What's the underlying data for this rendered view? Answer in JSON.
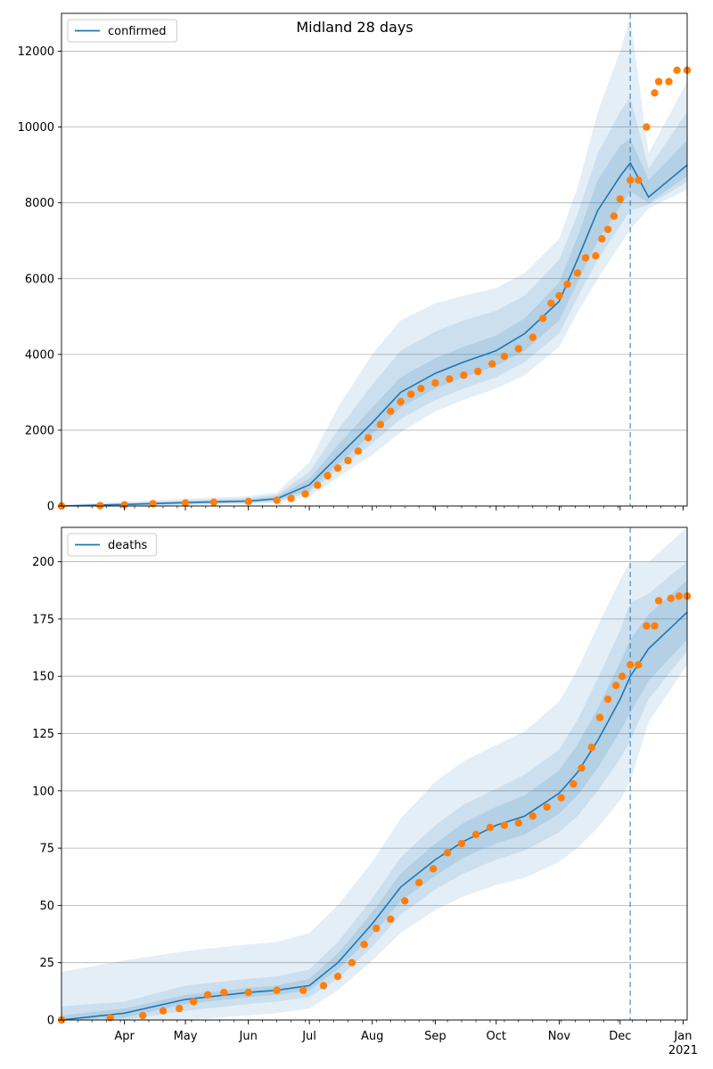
{
  "chart_data": {
    "title": "Midland 28 days",
    "type": "line",
    "x_axis": {
      "range": [
        "2020-03-01",
        "2021-01-03"
      ],
      "month_labels": [
        {
          "date": "2020-04-01",
          "label": "Apr"
        },
        {
          "date": "2020-05-01",
          "label": "May"
        },
        {
          "date": "2020-06-01",
          "label": "Jun"
        },
        {
          "date": "2020-07-01",
          "label": "Jul"
        },
        {
          "date": "2020-08-01",
          "label": "Aug"
        },
        {
          "date": "2020-09-01",
          "label": "Sep"
        },
        {
          "date": "2020-10-01",
          "label": "Oct"
        },
        {
          "date": "2020-11-01",
          "label": "Nov"
        },
        {
          "date": "2020-12-01",
          "label": "Dec"
        },
        {
          "date": "2021-01-01",
          "label": "Jan"
        }
      ],
      "year_label": "2021",
      "minor_ticks": "weekly (Mondays)"
    },
    "forecast_line_date": "2020-12-06",
    "line_color": "#1f77b4",
    "band_color": "#1f77b4",
    "dot_color": "#ff7f0e",
    "panels": [
      {
        "legend": "confirmed",
        "legend_position": "top-left",
        "grid": "horizontal",
        "ylim": [
          0,
          13000
        ],
        "yticks": [
          0,
          2000,
          4000,
          6000,
          8000,
          10000,
          12000
        ],
        "model": {
          "dates": [
            "2020-03-01",
            "2020-04-01",
            "2020-05-01",
            "2020-06-01",
            "2020-06-15",
            "2020-07-01",
            "2020-07-15",
            "2020-08-01",
            "2020-08-15",
            "2020-09-01",
            "2020-09-15",
            "2020-10-01",
            "2020-10-15",
            "2020-11-01",
            "2020-11-10",
            "2020-11-20",
            "2020-12-01",
            "2020-12-06",
            "2020-12-15",
            "2021-01-03"
          ],
          "median": [
            0,
            40,
            90,
            130,
            190,
            560,
            1300,
            2200,
            3000,
            3500,
            3800,
            4100,
            4550,
            5400,
            6500,
            7800,
            8700,
            9050,
            8150,
            9000
          ],
          "band_inner": [
            [
              0,
              0
            ],
            [
              20,
              60
            ],
            [
              60,
              120
            ],
            [
              100,
              170
            ],
            [
              150,
              250
            ],
            [
              420,
              720
            ],
            [
              1100,
              1600
            ],
            [
              1900,
              2600
            ],
            [
              2600,
              3400
            ],
            [
              3100,
              3900
            ],
            [
              3400,
              4200
            ],
            [
              3700,
              4500
            ],
            [
              4100,
              4950
            ],
            [
              4900,
              5900
            ],
            [
              5900,
              7100
            ],
            [
              7000,
              8600
            ],
            [
              7900,
              9500
            ],
            [
              8300,
              9700
            ],
            [
              8000,
              8600
            ],
            [
              8700,
              9650
            ]
          ],
          "band_mid": [
            [
              0,
              10
            ],
            [
              10,
              80
            ],
            [
              40,
              150
            ],
            [
              80,
              210
            ],
            [
              120,
              300
            ],
            [
              350,
              900
            ],
            [
              950,
              2000
            ],
            [
              1650,
              3200
            ],
            [
              2300,
              4100
            ],
            [
              2800,
              4600
            ],
            [
              3100,
              4900
            ],
            [
              3400,
              5150
            ],
            [
              3800,
              5550
            ],
            [
              4550,
              6500
            ],
            [
              5500,
              7700
            ],
            [
              6500,
              9300
            ],
            [
              7400,
              10400
            ],
            [
              7800,
              10800
            ],
            [
              7950,
              8900
            ],
            [
              8550,
              10400
            ]
          ],
          "band_outer": [
            [
              0,
              40
            ],
            [
              0,
              110
            ],
            [
              20,
              190
            ],
            [
              50,
              260
            ],
            [
              90,
              360
            ],
            [
              250,
              1150
            ],
            [
              750,
              2600
            ],
            [
              1350,
              4000
            ],
            [
              1950,
              4900
            ],
            [
              2500,
              5350
            ],
            [
              2800,
              5550
            ],
            [
              3100,
              5750
            ],
            [
              3450,
              6150
            ],
            [
              4200,
              7050
            ],
            [
              5100,
              8400
            ],
            [
              6000,
              10400
            ],
            [
              6900,
              12000
            ],
            [
              7300,
              12900
            ],
            [
              7850,
              9300
            ],
            [
              8350,
              11200
            ]
          ]
        },
        "observed": [
          {
            "date": "2020-03-01",
            "value": 0
          },
          {
            "date": "2020-03-20",
            "value": 10
          },
          {
            "date": "2020-04-01",
            "value": 30
          },
          {
            "date": "2020-04-15",
            "value": 60
          },
          {
            "date": "2020-05-01",
            "value": 80
          },
          {
            "date": "2020-05-15",
            "value": 100
          },
          {
            "date": "2020-06-01",
            "value": 120
          },
          {
            "date": "2020-06-15",
            "value": 150
          },
          {
            "date": "2020-06-22",
            "value": 200
          },
          {
            "date": "2020-06-29",
            "value": 320
          },
          {
            "date": "2020-07-05",
            "value": 550
          },
          {
            "date": "2020-07-10",
            "value": 800
          },
          {
            "date": "2020-07-15",
            "value": 1000
          },
          {
            "date": "2020-07-20",
            "value": 1200
          },
          {
            "date": "2020-07-25",
            "value": 1450
          },
          {
            "date": "2020-07-30",
            "value": 1800
          },
          {
            "date": "2020-08-05",
            "value": 2150
          },
          {
            "date": "2020-08-10",
            "value": 2500
          },
          {
            "date": "2020-08-15",
            "value": 2750
          },
          {
            "date": "2020-08-20",
            "value": 2950
          },
          {
            "date": "2020-08-25",
            "value": 3100
          },
          {
            "date": "2020-09-01",
            "value": 3250
          },
          {
            "date": "2020-09-08",
            "value": 3350
          },
          {
            "date": "2020-09-15",
            "value": 3450
          },
          {
            "date": "2020-09-22",
            "value": 3550
          },
          {
            "date": "2020-09-29",
            "value": 3750
          },
          {
            "date": "2020-10-05",
            "value": 3950
          },
          {
            "date": "2020-10-12",
            "value": 4150
          },
          {
            "date": "2020-10-19",
            "value": 4450
          },
          {
            "date": "2020-10-24",
            "value": 4950
          },
          {
            "date": "2020-10-28",
            "value": 5350
          },
          {
            "date": "2020-11-01",
            "value": 5550
          },
          {
            "date": "2020-11-05",
            "value": 5850
          },
          {
            "date": "2020-11-10",
            "value": 6150
          },
          {
            "date": "2020-11-14",
            "value": 6550
          },
          {
            "date": "2020-11-19",
            "value": 6600
          },
          {
            "date": "2020-11-22",
            "value": 7050
          },
          {
            "date": "2020-11-25",
            "value": 7300
          },
          {
            "date": "2020-11-28",
            "value": 7650
          },
          {
            "date": "2020-12-01",
            "value": 8100
          },
          {
            "date": "2020-12-06",
            "value": 8600
          },
          {
            "date": "2020-12-10",
            "value": 8600
          },
          {
            "date": "2020-12-14",
            "value": 10000
          },
          {
            "date": "2020-12-18",
            "value": 10900
          },
          {
            "date": "2020-12-20",
            "value": 11200
          },
          {
            "date": "2020-12-25",
            "value": 11200
          },
          {
            "date": "2020-12-29",
            "value": 11500
          },
          {
            "date": "2021-01-03",
            "value": 11500
          }
        ]
      },
      {
        "legend": "deaths",
        "legend_position": "top-left",
        "grid": "horizontal",
        "ylim": [
          0,
          215
        ],
        "yticks": [
          0,
          25,
          50,
          75,
          100,
          125,
          150,
          175,
          200
        ],
        "model": {
          "dates": [
            "2020-03-01",
            "2020-04-01",
            "2020-05-01",
            "2020-06-01",
            "2020-06-15",
            "2020-07-01",
            "2020-07-15",
            "2020-08-01",
            "2020-08-15",
            "2020-09-01",
            "2020-09-15",
            "2020-10-01",
            "2020-10-15",
            "2020-11-01",
            "2020-11-10",
            "2020-11-20",
            "2020-12-01",
            "2020-12-06",
            "2020-12-15",
            "2021-01-03"
          ],
          "median": [
            0,
            3,
            9,
            12,
            13,
            15,
            25,
            42,
            58,
            70,
            78,
            85,
            89,
            99,
            108,
            122,
            140,
            150,
            162,
            178
          ],
          "band_inner": [
            [
              0,
              2
            ],
            [
              1,
              5
            ],
            [
              7,
              11
            ],
            [
              10,
              14
            ],
            [
              11,
              15
            ],
            [
              13,
              18
            ],
            [
              22,
              29
            ],
            [
              37,
              47
            ],
            [
              52,
              64
            ],
            [
              63,
              77
            ],
            [
              71,
              86
            ],
            [
              77,
              93
            ],
            [
              81,
              98
            ],
            [
              90,
              109
            ],
            [
              98,
              120
            ],
            [
              110,
              136
            ],
            [
              126,
              156
            ],
            [
              134,
              166
            ],
            [
              148,
              177
            ],
            [
              166,
              192
            ]
          ],
          "band_mid": [
            [
              0,
              6
            ],
            [
              0,
              8
            ],
            [
              4,
              15
            ],
            [
              7,
              18
            ],
            [
              8,
              19
            ],
            [
              10,
              22
            ],
            [
              18,
              34
            ],
            [
              32,
              53
            ],
            [
              46,
              71
            ],
            [
              57,
              85
            ],
            [
              64,
              94
            ],
            [
              70,
              101
            ],
            [
              74,
              107
            ],
            [
              82,
              118
            ],
            [
              89,
              131
            ],
            [
              100,
              149
            ],
            [
              114,
              170
            ],
            [
              122,
              182
            ],
            [
              140,
              186
            ],
            [
              161,
              200
            ]
          ],
          "band_outer": [
            [
              0,
              21
            ],
            [
              0,
              26
            ],
            [
              0,
              30
            ],
            [
              2,
              33
            ],
            [
              3,
              34
            ],
            [
              5,
              38
            ],
            [
              13,
              50
            ],
            [
              26,
              69
            ],
            [
              38,
              88
            ],
            [
              48,
              104
            ],
            [
              54,
              113
            ],
            [
              59,
              120
            ],
            [
              62,
              126
            ],
            [
              69,
              139
            ],
            [
              75,
              153
            ],
            [
              84,
              172
            ],
            [
              96,
              192
            ],
            [
              104,
              200
            ],
            [
              130,
              200
            ],
            [
              155,
              215
            ]
          ]
        },
        "observed": [
          {
            "date": "2020-03-01",
            "value": 0
          },
          {
            "date": "2020-03-25",
            "value": 1
          },
          {
            "date": "2020-04-10",
            "value": 2
          },
          {
            "date": "2020-04-20",
            "value": 4
          },
          {
            "date": "2020-04-28",
            "value": 5
          },
          {
            "date": "2020-05-05",
            "value": 8
          },
          {
            "date": "2020-05-12",
            "value": 11
          },
          {
            "date": "2020-05-20",
            "value": 12
          },
          {
            "date": "2020-06-01",
            "value": 12
          },
          {
            "date": "2020-06-15",
            "value": 13
          },
          {
            "date": "2020-06-28",
            "value": 13
          },
          {
            "date": "2020-07-08",
            "value": 15
          },
          {
            "date": "2020-07-15",
            "value": 19
          },
          {
            "date": "2020-07-22",
            "value": 25
          },
          {
            "date": "2020-07-28",
            "value": 33
          },
          {
            "date": "2020-08-03",
            "value": 40
          },
          {
            "date": "2020-08-10",
            "value": 44
          },
          {
            "date": "2020-08-17",
            "value": 52
          },
          {
            "date": "2020-08-24",
            "value": 60
          },
          {
            "date": "2020-08-31",
            "value": 66
          },
          {
            "date": "2020-09-07",
            "value": 73
          },
          {
            "date": "2020-09-14",
            "value": 77
          },
          {
            "date": "2020-09-21",
            "value": 81
          },
          {
            "date": "2020-09-28",
            "value": 84
          },
          {
            "date": "2020-10-05",
            "value": 85
          },
          {
            "date": "2020-10-12",
            "value": 86
          },
          {
            "date": "2020-10-19",
            "value": 89
          },
          {
            "date": "2020-10-26",
            "value": 93
          },
          {
            "date": "2020-11-02",
            "value": 97
          },
          {
            "date": "2020-11-08",
            "value": 103
          },
          {
            "date": "2020-11-12",
            "value": 110
          },
          {
            "date": "2020-11-17",
            "value": 119
          },
          {
            "date": "2020-11-21",
            "value": 132
          },
          {
            "date": "2020-11-25",
            "value": 140
          },
          {
            "date": "2020-11-29",
            "value": 146
          },
          {
            "date": "2020-12-02",
            "value": 150
          },
          {
            "date": "2020-12-06",
            "value": 155
          },
          {
            "date": "2020-12-10",
            "value": 155
          },
          {
            "date": "2020-12-14",
            "value": 172
          },
          {
            "date": "2020-12-18",
            "value": 172
          },
          {
            "date": "2020-12-20",
            "value": 183
          },
          {
            "date": "2020-12-26",
            "value": 184
          },
          {
            "date": "2020-12-30",
            "value": 185
          },
          {
            "date": "2021-01-03",
            "value": 185
          }
        ]
      }
    ]
  }
}
